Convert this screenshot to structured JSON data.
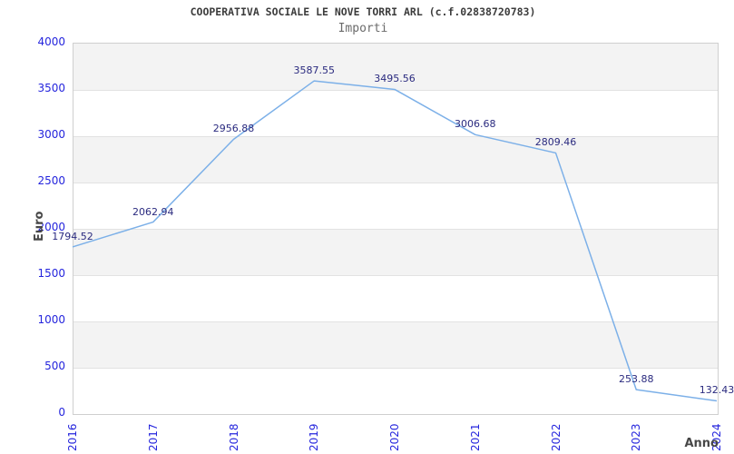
{
  "chart_data": {
    "type": "line",
    "title": "COOPERATIVA SOCIALE LE NOVE TORRI ARL (c.f.02838720783)",
    "subtitle": "Importi",
    "xlabel": "Anno",
    "ylabel": "Euro",
    "categories": [
      "2016",
      "2017",
      "2018",
      "2019",
      "2020",
      "2021",
      "2022",
      "2023",
      "2024"
    ],
    "series": [
      {
        "name": "Importi",
        "values": [
          1794.52,
          2062.94,
          2956.88,
          3587.55,
          3495.56,
          3006.68,
          2809.46,
          253.88,
          132.43
        ]
      }
    ],
    "data_labels": [
      "1794.52",
      "2062.94",
      "2956.88",
      "3587.55",
      "3495.56",
      "3006.68",
      "2809.46",
      "253.88",
      "132.43"
    ],
    "ylim": [
      0,
      4000
    ],
    "ytick_step": 500,
    "yticks": [
      0,
      500,
      1000,
      1500,
      2000,
      2500,
      3000,
      3500,
      4000
    ],
    "grid": true,
    "legend": "none",
    "band_fill": "alternating",
    "colors": {
      "line": "#7cb0e8",
      "tick_label": "#2525dd",
      "data_label": "#2a2a7f",
      "band": "#f3f3f3",
      "gridline": "#e2e2e2",
      "plot_border": "#cfcfcf",
      "title": "#3c3c3c",
      "subtitle": "#6b6b6b",
      "axis_title": "#474747"
    }
  }
}
